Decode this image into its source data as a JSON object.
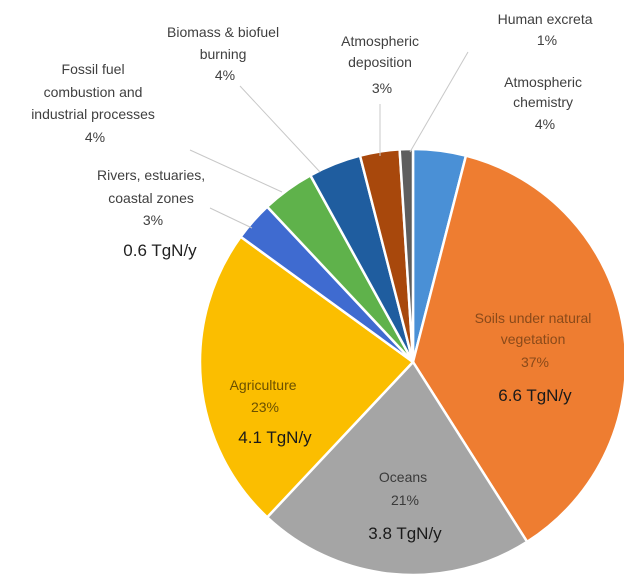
{
  "chart_data": {
    "type": "pie",
    "title": "",
    "legend": "none",
    "start_angle_deg": 0,
    "direction": "clockwise",
    "slices": [
      {
        "label": "Atmospheric chemistry",
        "percent_label": "4%",
        "value": 4,
        "color": "#4a90d6"
      },
      {
        "label": "Soils under natural vegetation",
        "percent_label": "37%",
        "value": 37,
        "amount": "6.6 TgN/y",
        "color": "#ee7d31"
      },
      {
        "label": "Oceans",
        "percent_label": "21%",
        "value": 21,
        "amount": "3.8 TgN/y",
        "color": "#a5a5a5"
      },
      {
        "label": "Agriculture",
        "percent_label": "23%",
        "value": 23,
        "amount": "4.1 TgN/y",
        "color": "#fbbe00"
      },
      {
        "label": "Rivers, estuaries, coastal zones",
        "percent_label": "3%",
        "value": 3,
        "amount": "0.6 TgN/y",
        "color": "#3f6bd0"
      },
      {
        "label": "Fossil fuel combustion and industrial processes",
        "percent_label": "4%",
        "value": 4,
        "color": "#5fb24b"
      },
      {
        "label": "Biomass & biofuel burning",
        "percent_label": "4%",
        "value": 4,
        "color": "#1f5d9f"
      },
      {
        "label": "Atmospheric deposition",
        "percent_label": "3%",
        "value": 3,
        "color": "#a8480c"
      },
      {
        "label": "Human excreta",
        "percent_label": "1%",
        "value": 1,
        "color": "#5e5e5e"
      }
    ]
  },
  "labels": {
    "atmospheric_chemistry": {
      "line1": "Atmospheric",
      "line2": "chemistry",
      "pct": "4%"
    },
    "human_excreta": {
      "line1": "Human excreta",
      "pct": "1%"
    },
    "atmospheric_deposition": {
      "line1": "Atmospheric",
      "line2": "deposition",
      "pct": "3%"
    },
    "biomass": {
      "line1": "Biomass & biofuel",
      "line2": "burning",
      "pct": "4%"
    },
    "fossil": {
      "line1": "Fossil fuel",
      "line2": "combustion and",
      "line3": "industrial processes",
      "pct": "4%"
    },
    "rivers": {
      "line1": "Rivers, estuaries,",
      "line2": "coastal zones",
      "pct": "3%",
      "amount": "0.6 TgN/y"
    },
    "soils": {
      "line1": "Soils under natural",
      "line2": "vegetation",
      "pct": "37%",
      "amount": "6.6 TgN/y"
    },
    "oceans": {
      "line1": "Oceans",
      "pct": "21%",
      "amount": "3.8 TgN/y"
    },
    "agriculture": {
      "line1": "Agriculture",
      "pct": "23%",
      "amount": "4.1 TgN/y"
    }
  }
}
